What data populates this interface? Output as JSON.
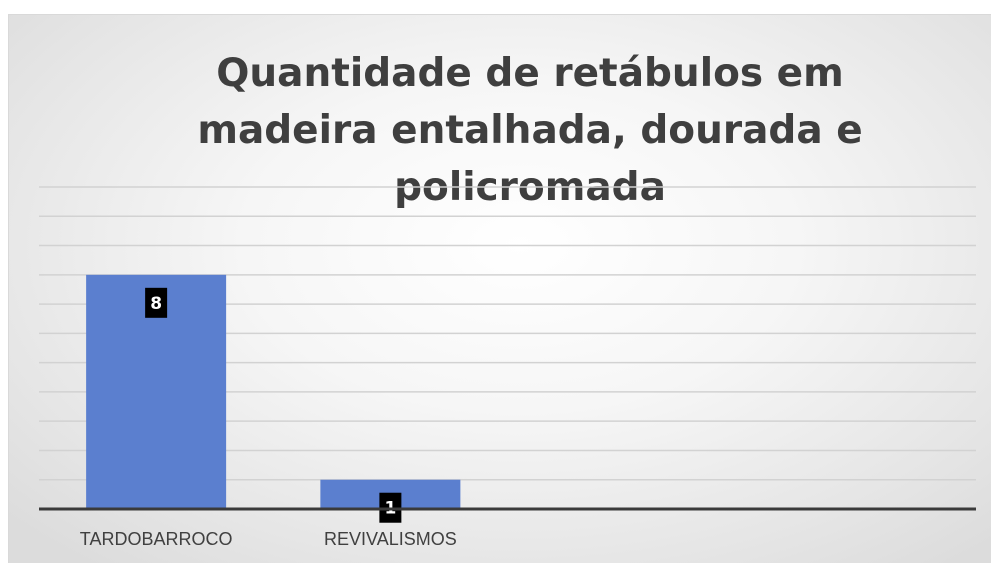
{
  "chart_data": {
    "type": "bar",
    "title": "Quantidade de retábulos em madeira entalhada, dourada e policromada",
    "categories": [
      "TARDOBARROCO",
      "REVIVALISMOS"
    ],
    "values": [
      8,
      1
    ],
    "data_labels": [
      "8",
      "1"
    ],
    "ylim": [
      0,
      11
    ],
    "grid": true,
    "legend": "none",
    "bar_color": "#5b7fcf",
    "grid_color": "#d2d2d2",
    "axis_color": "#3a3a3a",
    "label_box_color": "#000000"
  }
}
